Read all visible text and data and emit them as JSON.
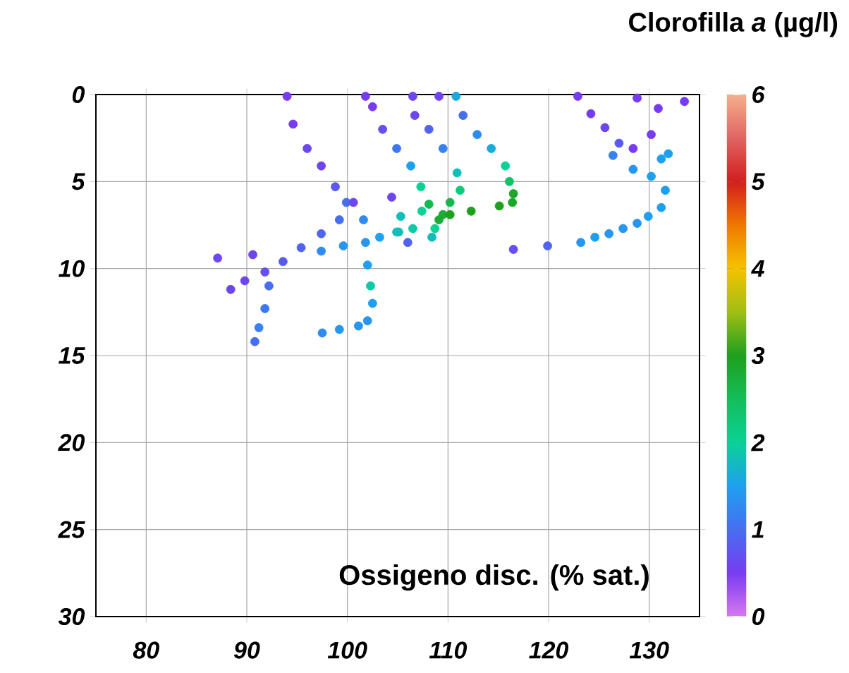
{
  "chart_data": {
    "type": "scatter",
    "xlabel": "Ossigeno disc. (% sat.)",
    "clabel": "Clorofilla *a* (µg/l)",
    "xlim": [
      75,
      135
    ],
    "xticks": [
      80,
      90,
      100,
      110,
      120,
      130
    ],
    "ylim": [
      30,
      0
    ],
    "yticks": [
      0,
      5,
      10,
      15,
      20,
      25,
      30
    ],
    "clim": [
      0,
      6
    ],
    "cticks": [
      0,
      1,
      2,
      3,
      4,
      5,
      6
    ],
    "grid": true,
    "marker": "circle",
    "x": [
      94.0,
      94.6,
      96.0,
      97.4,
      98.8,
      99.9,
      99.2,
      97.4,
      95.4,
      93.6,
      91.8,
      89.8,
      88.4,
      92.2,
      91.8,
      91.2,
      90.8,
      87.1,
      90.6,
      97.4,
      99.6,
      103.2,
      104.9,
      100.6,
      104.4,
      101.6,
      101.8,
      102.0,
      102.3,
      102.5,
      102.0,
      101.1,
      99.2,
      97.5,
      101.8,
      102.5,
      103.5,
      104.9,
      106.3,
      107.3,
      108.1,
      109.1,
      107.4,
      106.5,
      105.1,
      105.3,
      106.0,
      106.5,
      106.7,
      108.1,
      109.5,
      110.9,
      111.2,
      110.2,
      109.5,
      110.2,
      108.7,
      108.4,
      112.3,
      115.1,
      109.1,
      110.8,
      111.5,
      112.9,
      114.3,
      115.7,
      116.1,
      116.5,
      116.4,
      122.9,
      124.2,
      125.6,
      127.0,
      126.4,
      128.4,
      130.2,
      131.6,
      131.2,
      129.9,
      128.8,
      127.4,
      126.0,
      124.6,
      123.2,
      119.9,
      116.5,
      128.4,
      130.2,
      130.9,
      128.8,
      133.5,
      131.2,
      131.9
    ],
    "values": [
      0.1,
      1.7,
      3.1,
      4.1,
      5.3,
      6.2,
      7.2,
      8.0,
      8.8,
      9.6,
      10.2,
      10.7,
      11.2,
      11.0,
      12.3,
      13.4,
      14.2,
      9.4,
      9.2,
      9.0,
      8.7,
      8.2,
      7.9,
      6.2,
      5.9,
      7.2,
      8.5,
      9.8,
      11.0,
      12.0,
      13.0,
      13.3,
      13.5,
      13.7,
      0.1,
      0.7,
      2.0,
      3.1,
      4.1,
      5.3,
      6.3,
      7.2,
      6.7,
      7.7,
      7.9,
      7.0,
      8.5,
      0.1,
      1.2,
      2.0,
      3.1,
      4.5,
      5.5,
      6.2,
      6.9,
      6.9,
      7.7,
      8.2,
      6.7,
      6.4,
      0.1,
      0.1,
      1.2,
      2.3,
      3.1,
      4.1,
      5.0,
      5.7,
      6.2,
      0.1,
      1.1,
      1.9,
      2.8,
      3.5,
      4.3,
      4.7,
      5.5,
      6.5,
      7.0,
      7.4,
      7.7,
      8.0,
      8.2,
      8.5,
      8.7,
      8.9,
      3.1,
      2.3,
      0.8,
      0.2,
      0.4,
      3.7,
      3.4
    ],
    "cvalues": [
      0.5,
      0.5,
      0.6,
      0.6,
      0.8,
      1.0,
      1.0,
      0.9,
      0.9,
      0.8,
      0.7,
      0.6,
      0.6,
      1.0,
      1.1,
      1.2,
      1.0,
      0.6,
      0.6,
      1.3,
      1.4,
      1.5,
      1.8,
      0.6,
      0.6,
      1.3,
      1.4,
      1.5,
      1.9,
      1.5,
      1.4,
      1.4,
      1.4,
      1.3,
      0.5,
      0.5,
      0.7,
      1.1,
      1.5,
      2.0,
      2.6,
      2.8,
      2.0,
      1.9,
      1.8,
      1.8,
      0.9,
      0.6,
      0.6,
      0.9,
      1.2,
      1.8,
      2.2,
      2.6,
      2.8,
      3.0,
      2.0,
      1.8,
      3.0,
      3.0,
      0.6,
      1.6,
      1.0,
      1.3,
      1.6,
      2.0,
      2.4,
      2.9,
      2.9,
      0.5,
      0.5,
      0.6,
      0.8,
      1.2,
      1.4,
      1.5,
      1.5,
      1.5,
      1.5,
      1.4,
      1.4,
      1.4,
      1.5,
      1.4,
      0.9,
      0.7,
      0.5,
      0.5,
      0.5,
      0.5,
      0.5,
      1.5,
      1.5
    ]
  }
}
